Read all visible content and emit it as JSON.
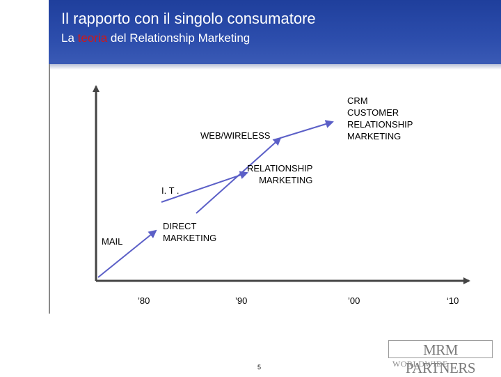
{
  "header": {
    "title": "Il rapporto con il singolo consumatore",
    "subtitle_pre": "La ",
    "subtitle_accent": "teoria",
    "subtitle_post": " del Relationship Marketing"
  },
  "diagram": {
    "labels": {
      "mail": "MAIL",
      "it": "I. T .",
      "web_wireless": "WEB/WIRELESS",
      "direct_marketing_1": "DIRECT",
      "direct_marketing_2": "MARKETING",
      "relationship_marketing_1": "RELATIONSHIP",
      "relationship_marketing_2": "MARKETING",
      "crm_1": "CRM",
      "crm_2": "CUSTOMER",
      "crm_3": "RELATIONSHIP",
      "crm_4": "MARKETING"
    },
    "x_ticks": [
      "’80",
      "’90",
      "’00",
      "‘10"
    ],
    "colors": {
      "header": "#2c4dac",
      "accent": "#d01818",
      "arrow": "#5b5fc7",
      "axis": "#444444"
    }
  },
  "footer": {
    "page_number": "5",
    "logo_main": "MRM PARTNERS",
    "logo_sub": "WORLDWIDE"
  }
}
